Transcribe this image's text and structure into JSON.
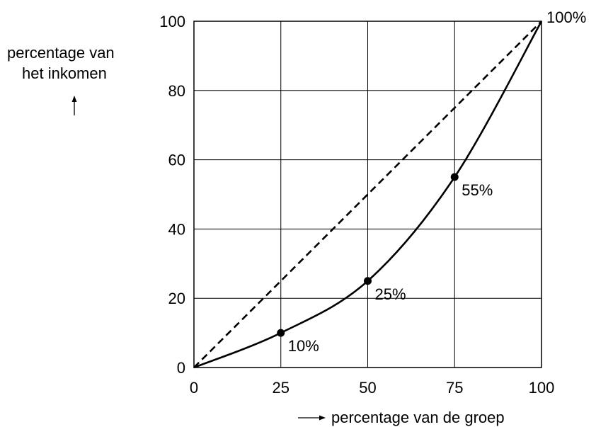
{
  "chart_data": {
    "type": "line",
    "title": "",
    "xlabel": "percentage van de groep",
    "ylabel_line1": "percentage van",
    "ylabel_line2": "het inkomen",
    "xlim": [
      0,
      100
    ],
    "ylim": [
      0,
      100
    ],
    "x_ticks": [
      0,
      25,
      50,
      75,
      100
    ],
    "y_ticks": [
      0,
      20,
      40,
      60,
      80,
      100
    ],
    "grid": true,
    "legend": "none",
    "series": [
      {
        "style": "dashed",
        "x": [
          0,
          100
        ],
        "y": [
          0,
          100
        ]
      },
      {
        "style": "solid",
        "x": [
          0,
          25,
          50,
          75,
          100
        ],
        "y": [
          0,
          10,
          25,
          55,
          100
        ],
        "markers": [
          {
            "x": 25,
            "y": 10
          },
          {
            "x": 50,
            "y": 25
          },
          {
            "x": 75,
            "y": 55
          }
        ]
      }
    ],
    "annotations": [
      {
        "text": "10%",
        "x": 25,
        "y": 10
      },
      {
        "text": "25%",
        "x": 50,
        "y": 25
      },
      {
        "text": "55%",
        "x": 75,
        "y": 55
      },
      {
        "text": "100%",
        "x": 100,
        "y": 100
      }
    ],
    "colors": {
      "line": "#000000",
      "grid": "#000000"
    }
  }
}
